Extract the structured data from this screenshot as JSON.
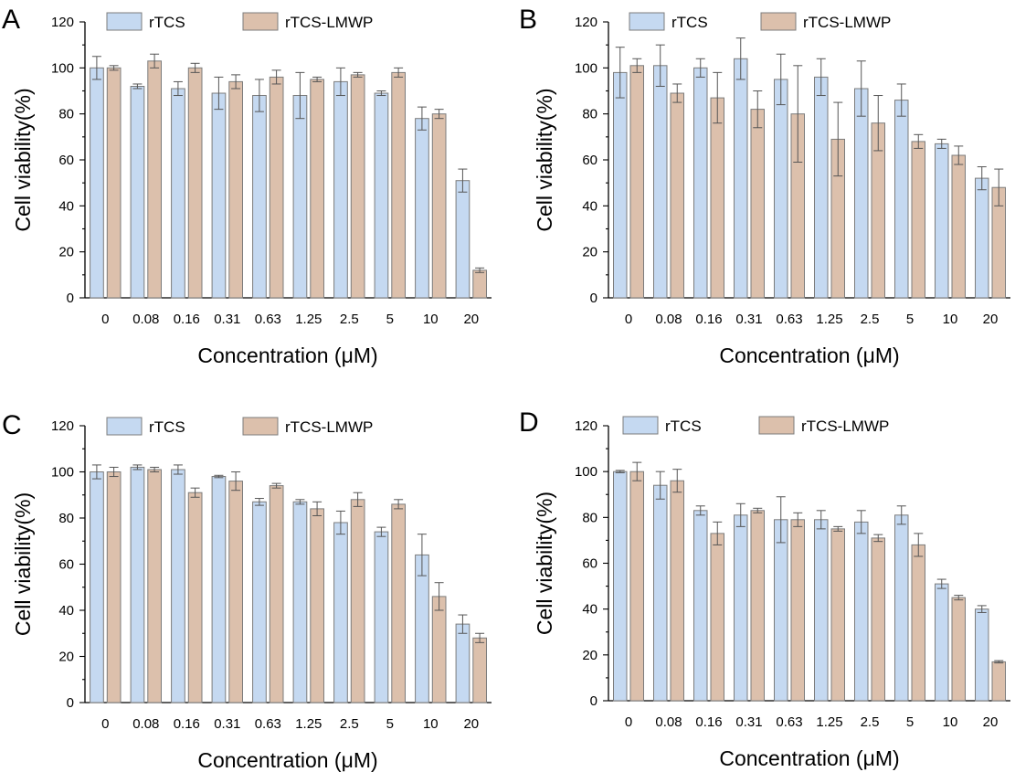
{
  "figure": {
    "colors": {
      "rTCS": "#c5d9f1",
      "rTCS-LMWP": "#dcc0ac"
    },
    "panels": [
      {
        "label": "A"
      },
      {
        "label": "B"
      },
      {
        "label": "C"
      },
      {
        "label": "D"
      }
    ]
  },
  "chart_data": [
    {
      "type": "bar",
      "panel": "A",
      "xlabel": "Concentration (μM)",
      "ylabel": "Cell viability(%)",
      "ylim": [
        0,
        120
      ],
      "yticks": [
        0,
        20,
        40,
        60,
        80,
        100,
        120
      ],
      "legend": "top",
      "categories": [
        "0",
        "0.08",
        "0.16",
        "0.31",
        "0.63",
        "1.25",
        "2.5",
        "5",
        "10",
        "20"
      ],
      "series": [
        {
          "name": "rTCS",
          "values": [
            100,
            92,
            91,
            89,
            88,
            88,
            94,
            89,
            78,
            51
          ],
          "errors": [
            5,
            1,
            3,
            7,
            7,
            10,
            6,
            1,
            5,
            5
          ]
        },
        {
          "name": "rTCS-LMWP",
          "values": [
            100,
            103,
            100,
            94,
            96,
            95,
            97,
            98,
            80,
            12
          ],
          "errors": [
            1,
            3,
            2,
            3,
            3,
            1,
            1,
            2,
            2,
            1
          ]
        }
      ]
    },
    {
      "type": "bar",
      "panel": "B",
      "xlabel": "Concentration (μM)",
      "ylabel": "Cell viability(%)",
      "ylim": [
        0,
        120
      ],
      "yticks": [
        0,
        20,
        40,
        60,
        80,
        100,
        120
      ],
      "legend": "top",
      "categories": [
        "0",
        "0.08",
        "0.16",
        "0.31",
        "0.63",
        "1.25",
        "2.5",
        "5",
        "10",
        "20"
      ],
      "series": [
        {
          "name": "rTCS",
          "values": [
            98,
            101,
            100,
            104,
            95,
            96,
            91,
            86,
            67,
            52
          ],
          "errors": [
            11,
            9,
            4,
            9,
            11,
            8,
            12,
            7,
            2,
            5
          ]
        },
        {
          "name": "rTCS-LMWP",
          "values": [
            101,
            89,
            87,
            82,
            80,
            69,
            76,
            68,
            62,
            48
          ],
          "errors": [
            3,
            4,
            11,
            8,
            21,
            16,
            12,
            3,
            4,
            8
          ]
        }
      ]
    },
    {
      "type": "bar",
      "panel": "C",
      "xlabel": "Concentration (μM)",
      "ylabel": "Cell viability(%)",
      "ylim": [
        0,
        120
      ],
      "yticks": [
        0,
        20,
        40,
        60,
        80,
        100,
        120
      ],
      "legend": "top",
      "categories": [
        "0",
        "0.08",
        "0.16",
        "0.31",
        "0.63",
        "1.25",
        "2.5",
        "5",
        "10",
        "20"
      ],
      "series": [
        {
          "name": "rTCS",
          "values": [
            100,
            102,
            101,
            98,
            87,
            87,
            78,
            74,
            64,
            34
          ],
          "errors": [
            3,
            1,
            2,
            0.5,
            1.5,
            1,
            5,
            2,
            9,
            4
          ]
        },
        {
          "name": "rTCS-LMWP",
          "values": [
            100,
            101,
            91,
            96,
            94,
            84,
            88,
            86,
            46,
            28
          ],
          "errors": [
            2,
            1,
            2,
            4,
            1,
            3,
            3,
            2,
            6,
            2
          ]
        }
      ]
    },
    {
      "type": "bar",
      "panel": "D",
      "xlabel": "Concentration (μM)",
      "ylabel": "Cell viability(%)",
      "ylim": [
        0,
        120
      ],
      "yticks": [
        0,
        20,
        40,
        60,
        80,
        100,
        120
      ],
      "legend": "top",
      "categories": [
        "0",
        "0.08",
        "0.16",
        "0.31",
        "0.63",
        "1.25",
        "2.5",
        "5",
        "10",
        "20"
      ],
      "series": [
        {
          "name": "rTCS",
          "values": [
            100,
            94,
            83,
            81,
            79,
            79,
            78,
            81,
            51,
            40
          ],
          "errors": [
            0.5,
            6,
            2,
            5,
            10,
            4,
            5,
            4,
            2,
            1.5
          ]
        },
        {
          "name": "rTCS-LMWP",
          "values": [
            100,
            96,
            73,
            83,
            79,
            75,
            71,
            68,
            45,
            17
          ],
          "errors": [
            4,
            5,
            5,
            1,
            3,
            1,
            1.5,
            5,
            1,
            0.5
          ]
        }
      ]
    }
  ]
}
